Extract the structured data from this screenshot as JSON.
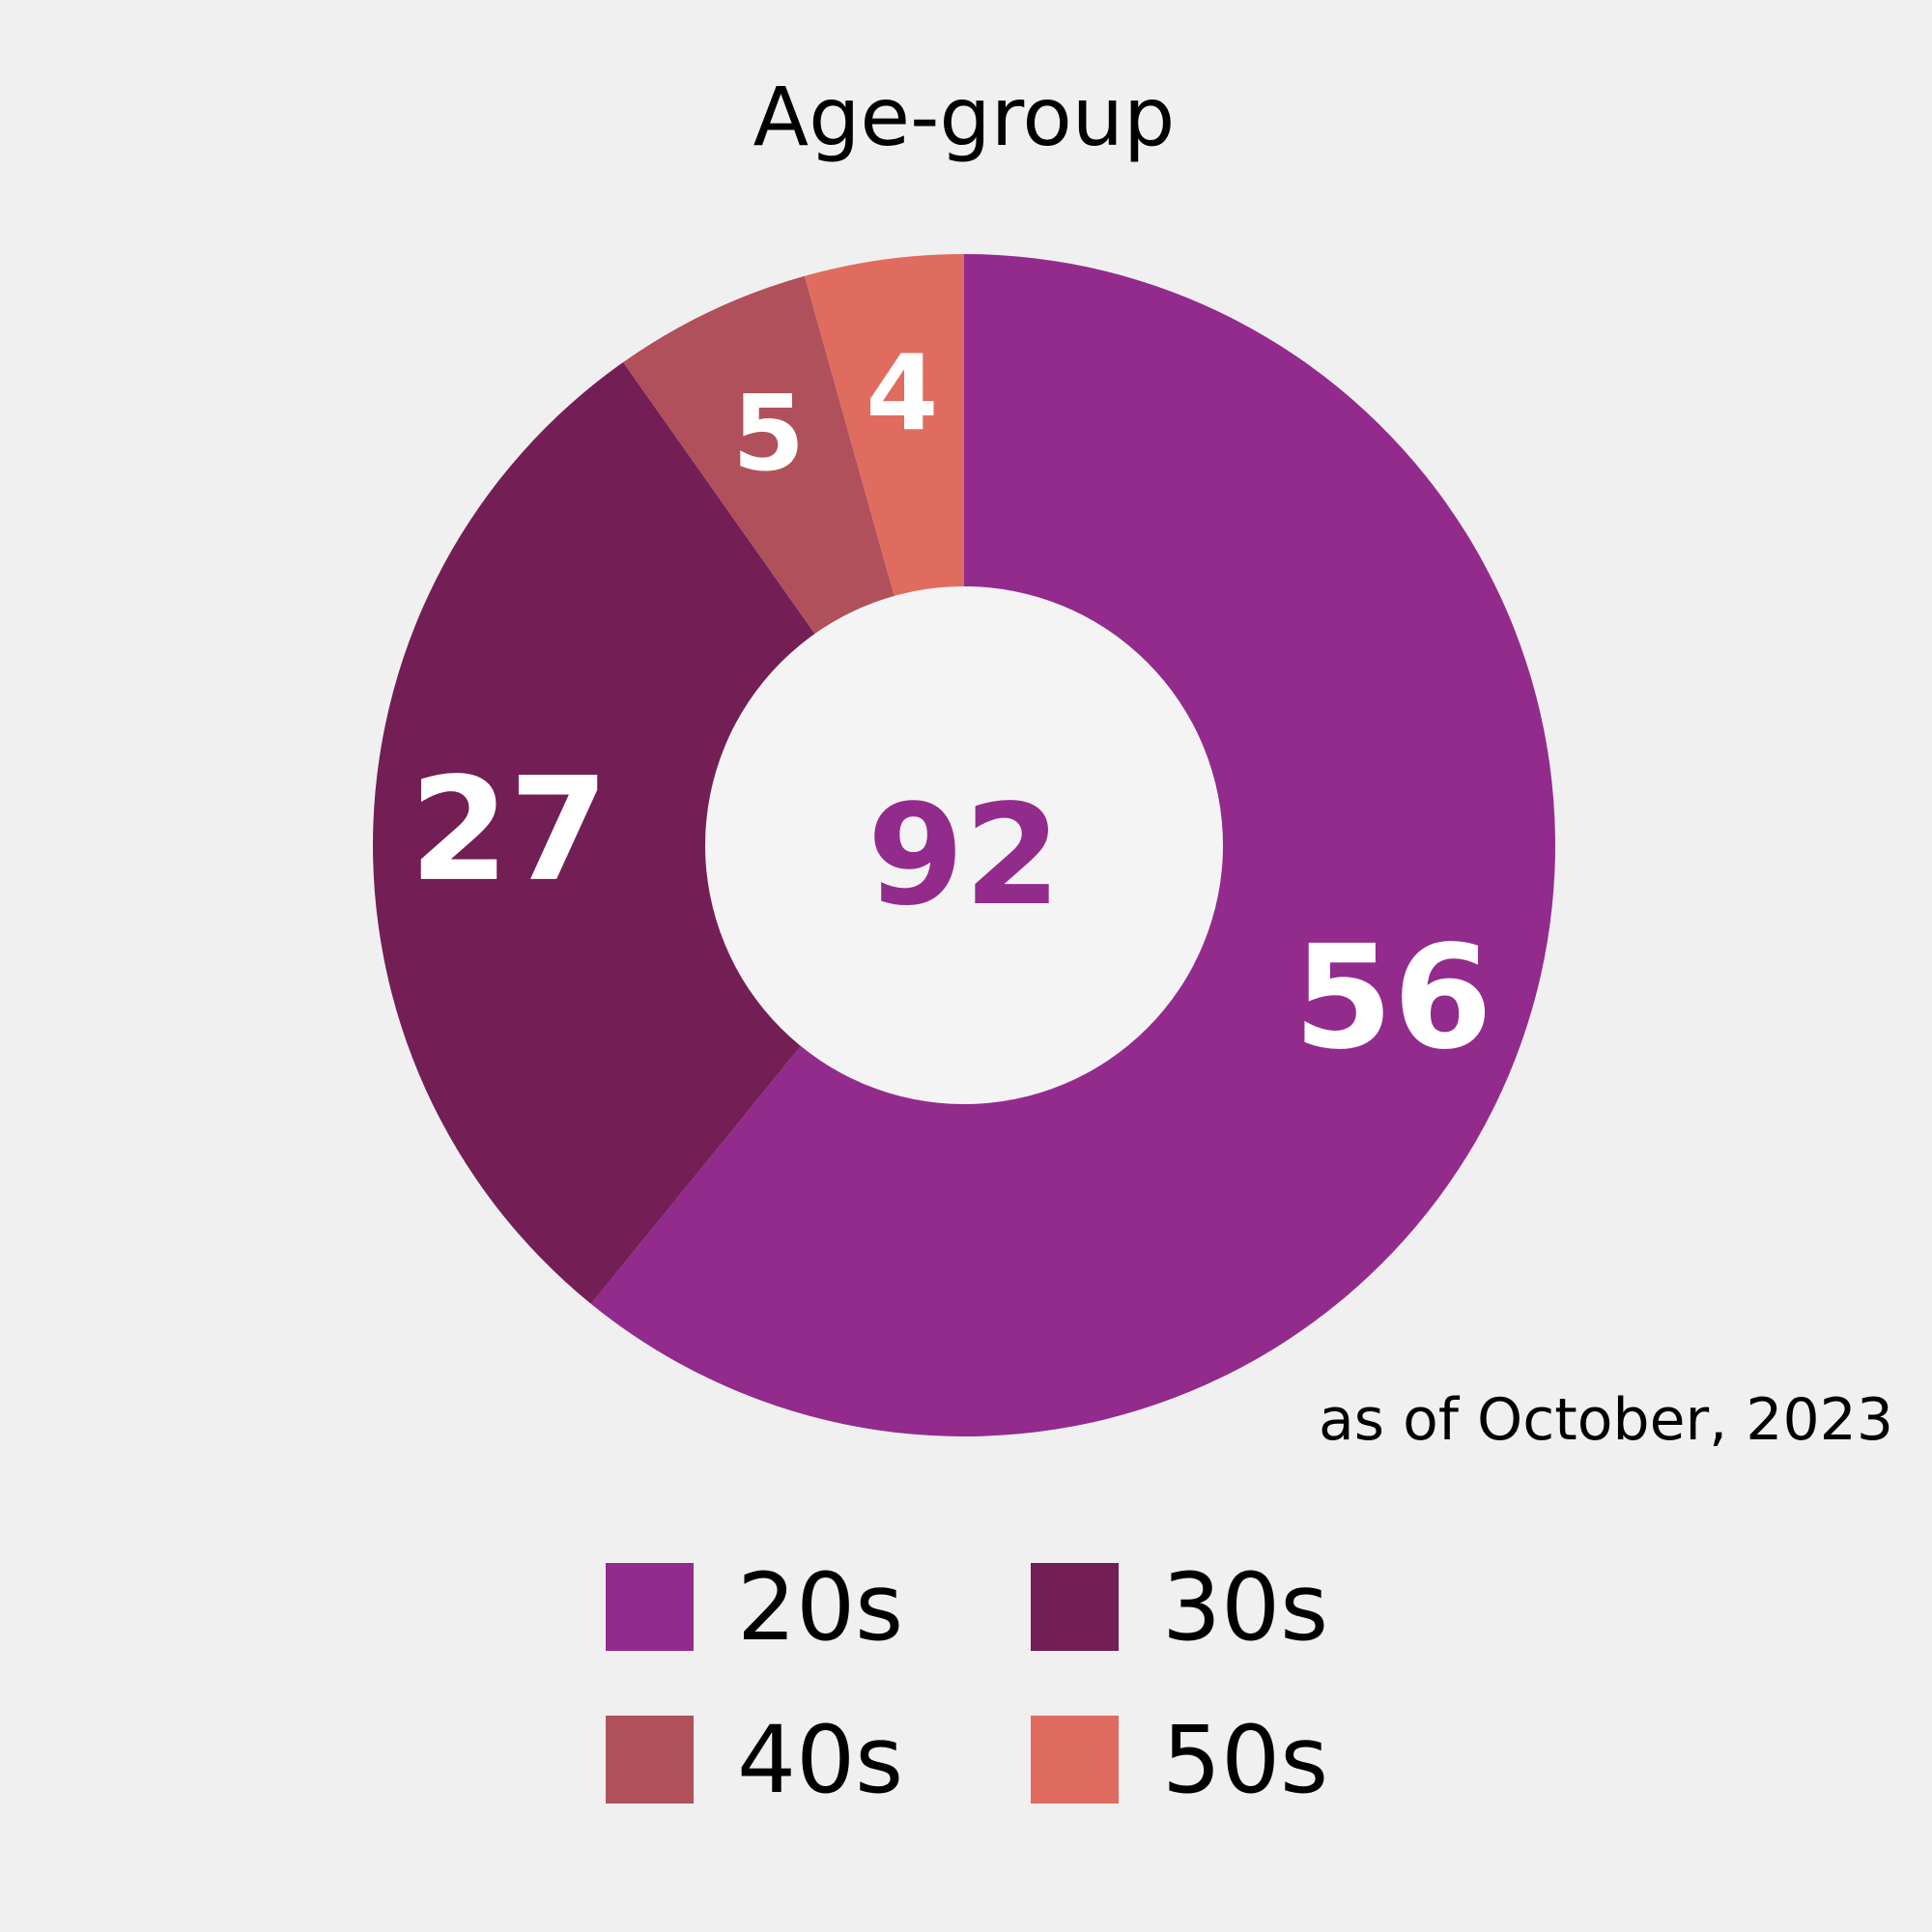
{
  "chart_data": {
    "type": "pie",
    "variant": "donut",
    "title": "Age-group",
    "categories": [
      "20s",
      "30s",
      "40s",
      "50s"
    ],
    "values": [
      56,
      27,
      5,
      4
    ],
    "colors": [
      "#922b8c",
      "#731f56",
      "#b0505b",
      "#e06c60"
    ],
    "center_total": "92",
    "center_color": "#922b8c",
    "center_fill": "#f4f4f4",
    "note": "as of October, 2023",
    "legend_position": "bottom",
    "start_angle": "top",
    "direction": "clockwise"
  }
}
